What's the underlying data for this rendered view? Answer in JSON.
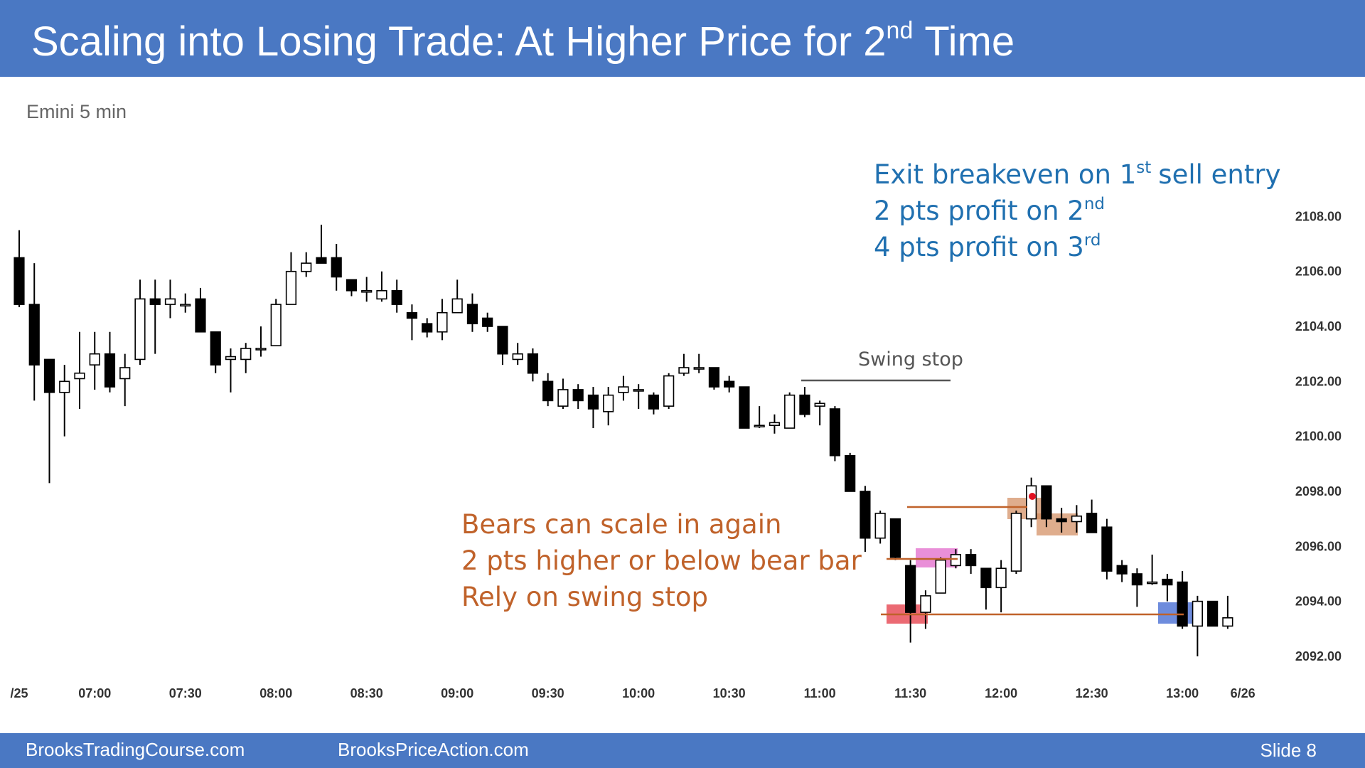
{
  "header": {
    "title": [
      "Scaling into Losing Trade: At Higher Price for 2",
      "nd",
      "Time"
    ]
  },
  "chart_data": {
    "type": "candlestick",
    "subtitle": "Emini 5 min",
    "notes_blue": [
      [
        "Exit breakeven on 1",
        "st",
        "sell entry"
      ],
      [
        "2 pts profit on 2",
        "nd"
      ],
      [
        "4 pts profit on 3",
        "rd"
      ]
    ],
    "notes_orange": [
      "Bears can scale in again",
      "2 pts higher or below bear bar",
      "Rely on swing stop"
    ],
    "swing_label": "Swing stop",
    "up_color": "#ffffff",
    "down_color": "#000000",
    "wick_color": "#000000",
    "grid": false,
    "xlim": [
      -1.27,
      82.5
    ],
    "xticks": [
      {
        "value": 0,
        "label": "/25"
      },
      {
        "value": 5,
        "label": "07:00"
      },
      {
        "value": 11,
        "label": "07:30"
      },
      {
        "value": 17,
        "label": "08:00"
      },
      {
        "value": 23,
        "label": "08:30"
      },
      {
        "value": 29,
        "label": "09:00"
      },
      {
        "value": 35,
        "label": "09:30"
      },
      {
        "value": 41,
        "label": "10:00"
      },
      {
        "value": 47,
        "label": "10:30"
      },
      {
        "value": 53,
        "label": "11:00"
      },
      {
        "value": 59,
        "label": "11:30"
      },
      {
        "value": 65,
        "label": "12:00"
      },
      {
        "value": 71,
        "label": "12:30"
      },
      {
        "value": 77,
        "label": "13:00"
      },
      {
        "value": 81,
        "label": "6/26"
      }
    ],
    "ylim": [
      2091.3,
      2110.7
    ],
    "yticks": [
      {
        "value": 2092,
        "label": "2092.00"
      },
      {
        "value": 2094,
        "label": "2094.00"
      },
      {
        "value": 2096,
        "label": "2096.00"
      },
      {
        "value": 2098,
        "label": "2098.00"
      },
      {
        "value": 2100,
        "label": "2100.00"
      },
      {
        "value": 2102,
        "label": "2102.00"
      },
      {
        "value": 2104,
        "label": "2104.00"
      },
      {
        "value": 2106,
        "label": "2106.00"
      },
      {
        "value": 2108,
        "label": "2108.00"
      }
    ],
    "open": [
      2106.5,
      2104.8,
      2102.8,
      2101.6,
      2102.1,
      2102.6,
      2103.0,
      2102.1,
      2102.8,
      2105.0,
      2104.8,
      2104.8,
      2105.0,
      2103.8,
      2102.8,
      2102.8,
      2103.2,
      2103.3,
      2104.8,
      2106.0,
      2106.5,
      2106.5,
      2105.7,
      2105.3,
      2105.0,
      2105.3,
      2104.5,
      2104.1,
      2103.8,
      2104.5,
      2104.8,
      2104.3,
      2104.0,
      2102.8,
      2103.0,
      2102.0,
      2101.1,
      2101.7,
      2101.5,
      2100.9,
      2101.6,
      2101.7,
      2101.5,
      2101.1,
      2102.3,
      2102.5,
      2102.5,
      2102.0,
      2101.8,
      2100.4,
      2100.4,
      2100.3,
      2101.5,
      2101.1,
      2101.0,
      2099.3,
      2098.0,
      2096.3,
      2097.0,
      2095.3,
      2093.6,
      2094.3,
      2095.3,
      2095.7,
      2095.2,
      2094.5,
      2095.1,
      2097.0,
      2098.2,
      2097.0,
      2096.9,
      2097.2,
      2096.7,
      2095.3,
      2095.0,
      2094.7,
      2094.8,
      2094.7,
      2093.1,
      2094.0,
      2093.1
    ],
    "high": [
      2107.5,
      2106.3,
      2102.8,
      2102.6,
      2103.8,
      2103.8,
      2103.8,
      2103.0,
      2105.7,
      2105.7,
      2105.7,
      2105.2,
      2105.4,
      2103.8,
      2103.2,
      2103.4,
      2104.0,
      2105.0,
      2106.7,
      2106.7,
      2107.7,
      2107.0,
      2105.7,
      2105.8,
      2106.0,
      2105.7,
      2104.8,
      2104.3,
      2105.0,
      2105.7,
      2105.2,
      2104.5,
      2104.0,
      2103.4,
      2103.2,
      2102.3,
      2102.1,
      2101.9,
      2101.8,
      2101.8,
      2102.2,
      2101.9,
      2101.6,
      2102.3,
      2103.0,
      2103.0,
      2102.5,
      2102.2,
      2101.8,
      2101.1,
      2100.8,
      2101.6,
      2101.8,
      2101.3,
      2101.1,
      2099.4,
      2098.2,
      2097.3,
      2097.0,
      2095.5,
      2094.4,
      2095.6,
      2095.9,
      2095.9,
      2095.2,
      2095.5,
      2097.3,
      2098.5,
      2098.2,
      2097.4,
      2097.5,
      2097.7,
      2097.0,
      2095.5,
      2095.2,
      2095.7,
      2095.0,
      2095.1,
      2094.2,
      2094.0,
      2094.2
    ],
    "low": [
      2104.7,
      2101.3,
      2098.3,
      2100.0,
      2101.0,
      2101.7,
      2101.6,
      2101.1,
      2102.6,
      2103.0,
      2104.3,
      2104.5,
      2103.8,
      2102.3,
      2101.6,
      2102.3,
      2102.9,
      2103.3,
      2104.8,
      2105.8,
      2106.3,
      2105.3,
      2105.1,
      2104.9,
      2104.9,
      2104.5,
      2103.5,
      2103.6,
      2103.5,
      2104.5,
      2103.8,
      2103.8,
      2102.6,
      2102.6,
      2102.0,
      2101.1,
      2101.0,
      2101.0,
      2100.3,
      2100.4,
      2101.3,
      2101.0,
      2100.8,
      2101.0,
      2102.2,
      2102.3,
      2101.7,
      2101.6,
      2100.3,
      2100.3,
      2100.1,
      2100.3,
      2100.7,
      2100.4,
      2099.1,
      2098.0,
      2095.8,
      2096.1,
      2095.5,
      2092.5,
      2093.0,
      2094.3,
      2095.2,
      2095.0,
      2093.7,
      2093.6,
      2095.0,
      2096.7,
      2096.7,
      2096.5,
      2096.5,
      2096.5,
      2094.8,
      2094.7,
      2093.8,
      2094.6,
      2094.0,
      2093.0,
      2092.0,
      2093.1,
      2093.0
    ],
    "close": [
      2104.8,
      2102.6,
      2101.6,
      2102.0,
      2102.3,
      2103.0,
      2101.8,
      2102.5,
      2105.0,
      2104.8,
      2105.0,
      2104.8,
      2103.8,
      2102.6,
      2102.9,
      2103.2,
      2103.2,
      2104.8,
      2106.0,
      2106.3,
      2106.3,
      2105.8,
      2105.3,
      2105.3,
      2105.3,
      2104.8,
      2104.3,
      2103.8,
      2104.5,
      2105.0,
      2104.1,
      2104.0,
      2103.0,
      2103.0,
      2102.3,
      2101.3,
      2101.7,
      2101.3,
      2101.0,
      2101.5,
      2101.8,
      2101.7,
      2101.0,
      2102.2,
      2102.5,
      2102.5,
      2101.8,
      2101.8,
      2100.3,
      2100.4,
      2100.5,
      2101.5,
      2100.8,
      2101.2,
      2099.3,
      2098.0,
      2096.3,
      2097.2,
      2095.6,
      2093.6,
      2094.2,
      2095.5,
      2095.7,
      2095.3,
      2094.5,
      2095.2,
      2097.2,
      2098.2,
      2097.0,
      2096.9,
      2097.1,
      2096.5,
      2095.1,
      2095.0,
      2094.6,
      2094.7,
      2094.6,
      2093.1,
      2094.0,
      2093.1,
      2093.4
    ]
  },
  "footer": {
    "left": "BrooksTradingCourse.com",
    "middle": "BrooksPriceAction.com",
    "slide": "Slide 8"
  }
}
